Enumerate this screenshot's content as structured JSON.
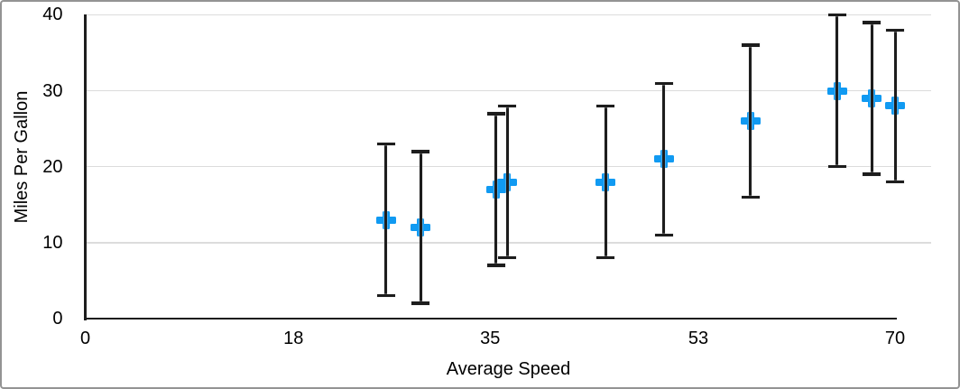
{
  "chart_data": {
    "type": "scatter",
    "title": "",
    "xlabel": "Average Speed",
    "ylabel": "Miles Per Gallon",
    "xlim": [
      0,
      70
    ],
    "ylim": [
      0,
      40
    ],
    "x_ticks": [
      0,
      18,
      35,
      53,
      70
    ],
    "y_ticks": [
      0,
      10,
      20,
      30,
      40
    ],
    "gridlines": "horizontal-only",
    "legend_position": "none",
    "marker": {
      "shape": "plus",
      "color": "#109af2",
      "size": 21
    },
    "error_bars": {
      "axis": "y",
      "plus": 10,
      "minus": 10,
      "cap_width": 20,
      "color": "#1d1d1d"
    },
    "axis_color": "#1d1d1d",
    "gridline_color": "#dcdcdc",
    "series": [
      {
        "name": "Miles Per Gallon",
        "points": [
          {
            "x": 26,
            "y": 13
          },
          {
            "x": 29,
            "y": 12
          },
          {
            "x": 35.5,
            "y": 17
          },
          {
            "x": 36.5,
            "y": 18
          },
          {
            "x": 45,
            "y": 18
          },
          {
            "x": 50,
            "y": 21
          },
          {
            "x": 57.5,
            "y": 26
          },
          {
            "x": 65,
            "y": 30
          },
          {
            "x": 68,
            "y": 29
          },
          {
            "x": 70,
            "y": 28
          }
        ]
      }
    ]
  }
}
